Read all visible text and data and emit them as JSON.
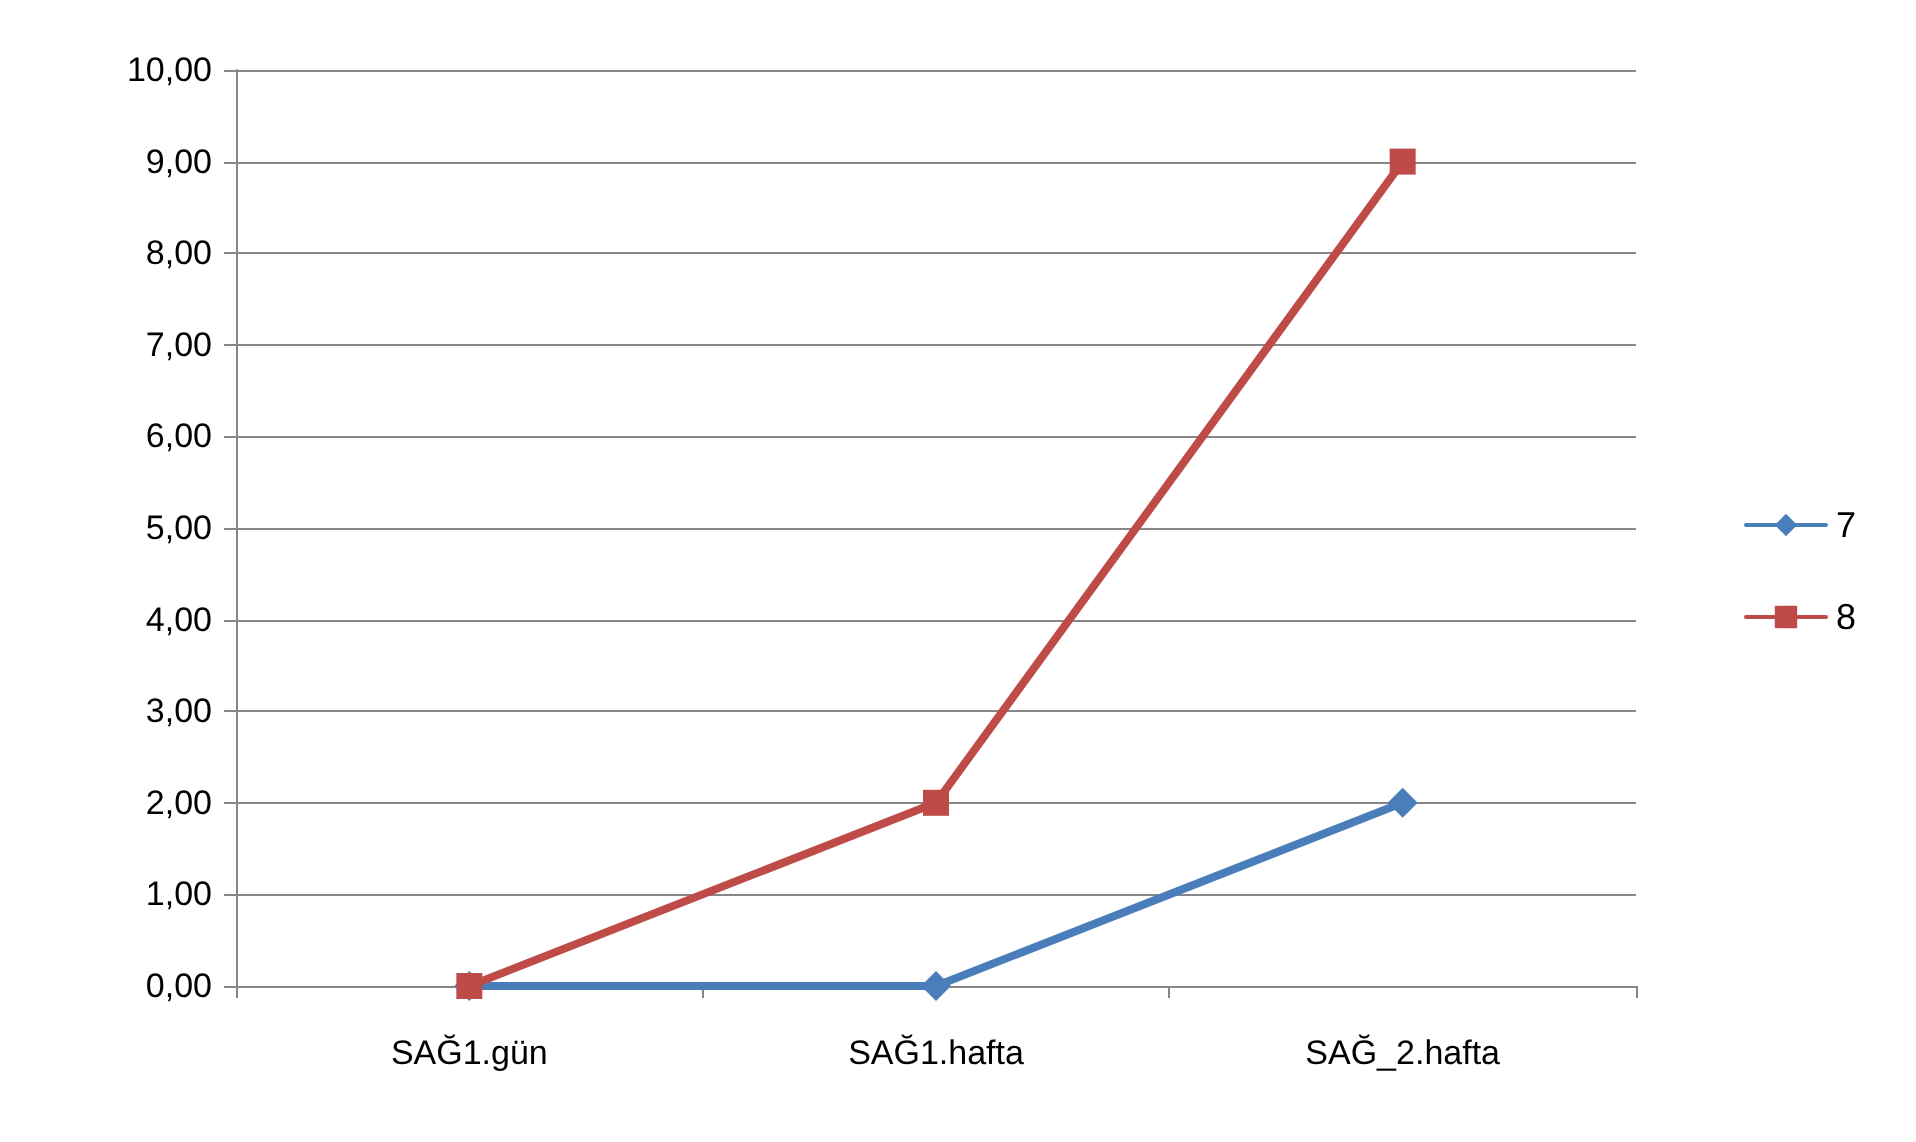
{
  "chart_data": {
    "type": "line",
    "categories": [
      "SAĞ1.gün",
      "SAĞ1.hafta",
      "SAĞ_2.hafta"
    ],
    "series": [
      {
        "name": "7",
        "color": "#4a7ebb",
        "marker": "diamond",
        "values": [
          0,
          0,
          2
        ]
      },
      {
        "name": "8",
        "color": "#be4b48",
        "marker": "square",
        "values": [
          0,
          2,
          9
        ]
      }
    ],
    "ylim": [
      0,
      10
    ],
    "yticks": [
      {
        "value": 0,
        "label": "0,00"
      },
      {
        "value": 1,
        "label": "1,00"
      },
      {
        "value": 2,
        "label": "2,00"
      },
      {
        "value": 3,
        "label": "3,00"
      },
      {
        "value": 4,
        "label": "4,00"
      },
      {
        "value": 5,
        "label": "5,00"
      },
      {
        "value": 6,
        "label": "6,00"
      },
      {
        "value": 7,
        "label": "7,00"
      },
      {
        "value": 8,
        "label": "8,00"
      },
      {
        "value": 9,
        "label": "9,00"
      },
      {
        "value": 10,
        "label": "10,00"
      }
    ],
    "grid": "y",
    "legend": "right",
    "line_style": "solid"
  }
}
